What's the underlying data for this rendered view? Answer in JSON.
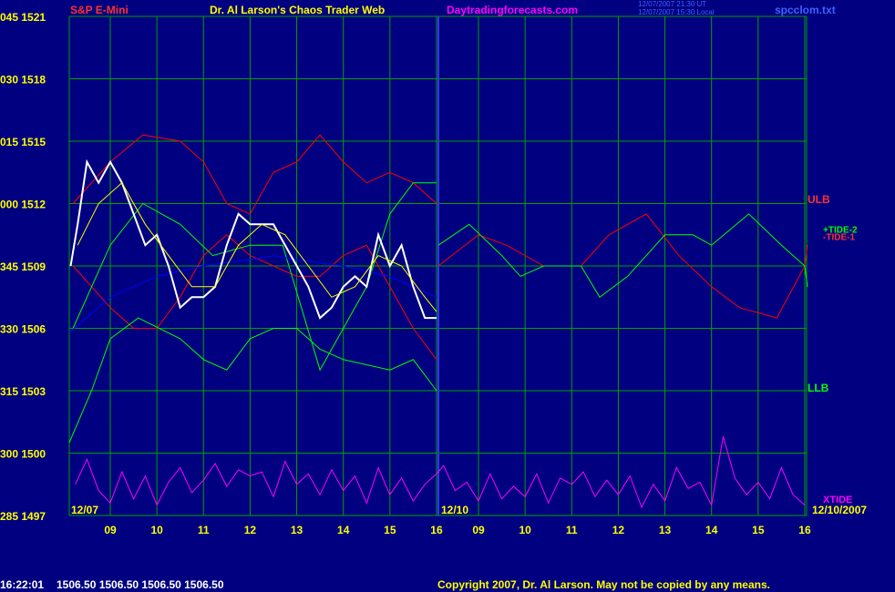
{
  "chart_data": {
    "type": "line",
    "title": "Dr. Al Larson's Chaos Trader Web",
    "symbol": "S&P E-Mini",
    "site": "Daytradingforecasts.com",
    "timestamps": [
      "12/07/2007 21:30 UT",
      "12/07/2007 15:30 Local"
    ],
    "file": "spcclom.txt",
    "day_labels": [
      "12/07",
      "12/10",
      "12/10/2007"
    ],
    "annotations": [
      "ULB",
      "LLB",
      "+TIDE-2",
      "-TIDE-1",
      "XTIDE"
    ],
    "status": {
      "time": "16:22:01",
      "quotes": "1506.50 1506.50 1506.50 1506.50"
    },
    "copyright": "Copyright 2007, Dr. Al Larson. May not be copied by any means.",
    "ylim": [
      1497,
      1521
    ],
    "yticks": [
      {
        "value": 1521,
        "label": "045 1521"
      },
      {
        "value": 1518,
        "label": "030 1518"
      },
      {
        "value": 1515,
        "label": "015 1515"
      },
      {
        "value": 1512,
        "label": "000 1512"
      },
      {
        "value": 1509,
        "label": "345 1509"
      },
      {
        "value": 1506,
        "label": "330 1506"
      },
      {
        "value": 1503,
        "label": "315 1503"
      },
      {
        "value": 1500,
        "label": "300 1500"
      },
      {
        "value": 1497,
        "label": "285 1497"
      }
    ],
    "xlim": [
      8.12,
      40.06
    ],
    "xticks": [
      {
        "value": 9,
        "label": "09"
      },
      10,
      11,
      12,
      13,
      14,
      15,
      16,
      {
        "value": 33,
        "label": "09"
      },
      {
        "value": 34,
        "label": "10"
      },
      {
        "value": 35,
        "label": "11"
      },
      {
        "value": 36,
        "label": "12"
      },
      {
        "value": 37,
        "label": "13"
      },
      {
        "value": 38,
        "label": "14"
      },
      {
        "value": 39,
        "label": "15"
      },
      {
        "value": 40,
        "label": "16"
      }
    ],
    "grid": true,
    "series": [
      {
        "color": "#ff0000",
        "width": 1,
        "x": [
          8.2,
          9,
          9.7,
          10.5,
          11,
          11.5,
          12,
          12.5,
          13,
          13.5,
          14,
          14.5,
          15,
          15.5,
          16
        ],
        "values": [
          1512,
          1514,
          1515.3,
          1515,
          1514,
          1512,
          1511.5,
          1513.5,
          1514,
          1515.3,
          1514,
          1513,
          1513.5,
          1513,
          1512
        ]
      },
      {
        "color": "#ff0000",
        "width": 1,
        "x": [
          8.2,
          9,
          9.5,
          10,
          10.5,
          11,
          11.5,
          12,
          12.5,
          13,
          13.5,
          14,
          14.5,
          15,
          15.5,
          16
        ],
        "values": [
          1509,
          1507,
          1506,
          1506,
          1507.5,
          1509.5,
          1510.5,
          1509.5,
          1509,
          1508.5,
          1508.5,
          1509.5,
          1510,
          1508,
          1506,
          1504.5
        ]
      },
      {
        "color": "#00ff00",
        "width": 1,
        "x": [
          8.2,
          9,
          9.7,
          10.5,
          11.2,
          12,
          12.7,
          13.5,
          14,
          14.5,
          15,
          15.5,
          16
        ],
        "values": [
          1506,
          1510,
          1512,
          1511,
          1509.5,
          1510,
          1510,
          1504,
          1506,
          1508,
          1511.5,
          1513,
          1513
        ]
      },
      {
        "color": "#00ff00",
        "width": 1,
        "x": [
          8.12,
          8.6,
          9,
          9.6,
          10.5,
          11,
          11.5,
          12,
          12.5,
          13,
          13.5,
          14,
          15,
          15.5,
          16
        ],
        "values": [
          1500.5,
          1503,
          1505.5,
          1506.5,
          1505.5,
          1504.5,
          1504,
          1505.5,
          1506,
          1506,
          1505,
          1504.5,
          1504,
          1504.5,
          1503
        ]
      },
      {
        "color": "#0000ff",
        "width": 1,
        "x": [
          8.12,
          9,
          10,
          11,
          12,
          12.5,
          13,
          14,
          15,
          15.5,
          16
        ],
        "values": [
          1505.8,
          1507.5,
          1508.5,
          1509,
          1509.3,
          1509.5,
          1509.3,
          1509,
          1508.5,
          1508,
          1507.5
        ]
      },
      {
        "color": "#ffffff",
        "width": 2,
        "x": [
          8.15,
          8.3,
          8.5,
          8.75,
          9,
          9.25,
          9.5,
          9.75,
          10,
          10.25,
          10.5,
          10.75,
          11,
          11.25,
          11.5,
          11.75,
          12,
          12.25,
          12.5,
          12.75,
          13,
          13.25,
          13.5,
          13.75,
          14,
          14.25,
          14.5,
          14.75,
          15,
          15.25,
          15.5,
          15.75,
          16
        ],
        "values": [
          1509,
          1511,
          1514,
          1513,
          1514,
          1513,
          1511.5,
          1510,
          1510.5,
          1509,
          1507,
          1507.5,
          1507.5,
          1508,
          1510,
          1511.5,
          1511,
          1511,
          1511,
          1510,
          1509,
          1508,
          1506.5,
          1507,
          1508,
          1508.5,
          1508,
          1510.5,
          1509,
          1510,
          1508,
          1506.5,
          1506.5
        ]
      },
      {
        "color": "#ffff00",
        "width": 1,
        "x": [
          8.3,
          8.75,
          9.25,
          9.75,
          10.25,
          10.75,
          11.25,
          11.75,
          12.25,
          12.75,
          13.25,
          13.75,
          14.25,
          14.75,
          15.25,
          15.75,
          16
        ],
        "values": [
          1510,
          1512,
          1513,
          1511,
          1509.5,
          1508,
          1508,
          1510,
          1511,
          1510.5,
          1509,
          1507.5,
          1508,
          1509.5,
          1509,
          1507.5,
          1506.8
        ]
      },
      {
        "color": "#ff0000",
        "width": 1,
        "x": [
          32.14,
          33,
          33.6,
          34.4,
          35.2,
          35.8,
          36.6,
          37.3,
          38,
          38.6,
          39.4,
          40,
          40.06
        ],
        "values": [
          1509,
          1510.5,
          1510,
          1509,
          1509,
          1510.5,
          1511.5,
          1509.5,
          1508,
          1507,
          1506.5,
          1509,
          1510
        ]
      },
      {
        "color": "#00ff00",
        "width": 1,
        "x": [
          32.14,
          32.8,
          33.5,
          33.9,
          34.4,
          35.2,
          35.6,
          36.2,
          37,
          37.6,
          38,
          38.8,
          39.5,
          40,
          40.06
        ],
        "values": [
          1510,
          1511,
          1509.5,
          1508.5,
          1509,
          1509,
          1507.5,
          1508.5,
          1510.5,
          1510.5,
          1510,
          1511.5,
          1510,
          1509,
          1508
        ]
      },
      {
        "color": "#ff00ff",
        "width": 1,
        "x": [
          8.25,
          8.5,
          8.75,
          9,
          9.25,
          9.5,
          9.75,
          10,
          10.25,
          10.5,
          10.75,
          11,
          11.25,
          11.5,
          11.75,
          12,
          12.25,
          12.5,
          12.75,
          13,
          13.25,
          13.5,
          13.75,
          14,
          14.25,
          14.5,
          14.75,
          15,
          15.25,
          15.5,
          15.75,
          16,
          32.25,
          32.5,
          32.75,
          33,
          33.25,
          33.5,
          33.75,
          34,
          34.25,
          34.5,
          34.75,
          35,
          35.25,
          35.5,
          35.75,
          36,
          36.25,
          36.5,
          36.75,
          37,
          37.25,
          37.5,
          37.75,
          38,
          38.25,
          38.5,
          38.75,
          39,
          39.25,
          39.5,
          39.75,
          40
        ],
        "values": [
          1498.5,
          1499.7,
          1498.2,
          1497.6,
          1499.1,
          1497.8,
          1498.9,
          1497.5,
          1498.6,
          1499.3,
          1498.1,
          1498.7,
          1499.5,
          1498.4,
          1499.2,
          1498.9,
          1499.1,
          1497.9,
          1499.6,
          1498.5,
          1499.0,
          1498.0,
          1499.2,
          1498.2,
          1498.9,
          1497.6,
          1499.3,
          1498.0,
          1498.8,
          1497.7,
          1498.5,
          1499.0,
          1499.4,
          1498.2,
          1498.6,
          1497.7,
          1499.0,
          1497.8,
          1498.4,
          1497.9,
          1499.0,
          1497.6,
          1498.8,
          1498.5,
          1499.1,
          1497.9,
          1498.7,
          1498.0,
          1498.9,
          1497.4,
          1498.5,
          1497.7,
          1499.3,
          1498.3,
          1498.6,
          1497.5,
          1500.8,
          1498.8,
          1498.0,
          1498.6,
          1497.8,
          1499.3,
          1498.0,
          1497.5
        ]
      }
    ]
  }
}
